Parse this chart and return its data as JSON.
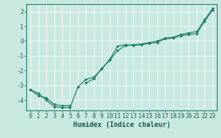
{
  "title": "",
  "xlabel": "Humidex (Indice chaleur)",
  "background_color": "#c8e8e0",
  "grid_color": "#ffffff",
  "line_color": "#1a7a6a",
  "xlim": [
    -0.5,
    23.5
  ],
  "ylim": [
    -4.7,
    2.5
  ],
  "x": [
    0,
    1,
    2,
    3,
    4,
    5,
    6,
    7,
    8,
    9,
    10,
    11,
    12,
    13,
    14,
    15,
    16,
    17,
    18,
    19,
    20,
    21,
    22,
    23
  ],
  "line1": [
    -3.3,
    -3.7,
    -3.85,
    -4.3,
    -4.38,
    -4.38,
    null,
    null,
    null,
    null,
    null,
    null,
    null,
    null,
    null,
    null,
    null,
    null,
    null,
    null,
    null,
    null,
    null,
    null
  ],
  "line2": [
    -3.3,
    -3.55,
    -4.0,
    -4.45,
    -4.5,
    -4.5,
    -3.1,
    -2.6,
    -2.45,
    -1.9,
    -1.25,
    -0.35,
    -0.25,
    -0.3,
    -0.25,
    -0.15,
    -0.1,
    0.15,
    0.2,
    0.35,
    0.45,
    0.5,
    1.35,
    2.1
  ],
  "line3": [
    -3.3,
    null,
    null,
    null,
    null,
    null,
    null,
    -2.85,
    -2.55,
    -1.85,
    -1.3,
    -0.65,
    -0.3,
    -0.25,
    -0.2,
    -0.1,
    0.0,
    0.2,
    0.25,
    0.45,
    0.55,
    0.65,
    1.45,
    2.2
  ],
  "xticks": [
    0,
    1,
    2,
    3,
    4,
    5,
    6,
    7,
    8,
    9,
    10,
    11,
    12,
    13,
    14,
    15,
    16,
    17,
    18,
    19,
    20,
    21,
    22,
    23
  ],
  "yticks": [
    -4,
    -3,
    -2,
    -1,
    0,
    1,
    2
  ],
  "xlabel_fontsize": 7,
  "tick_fontsize": 6
}
